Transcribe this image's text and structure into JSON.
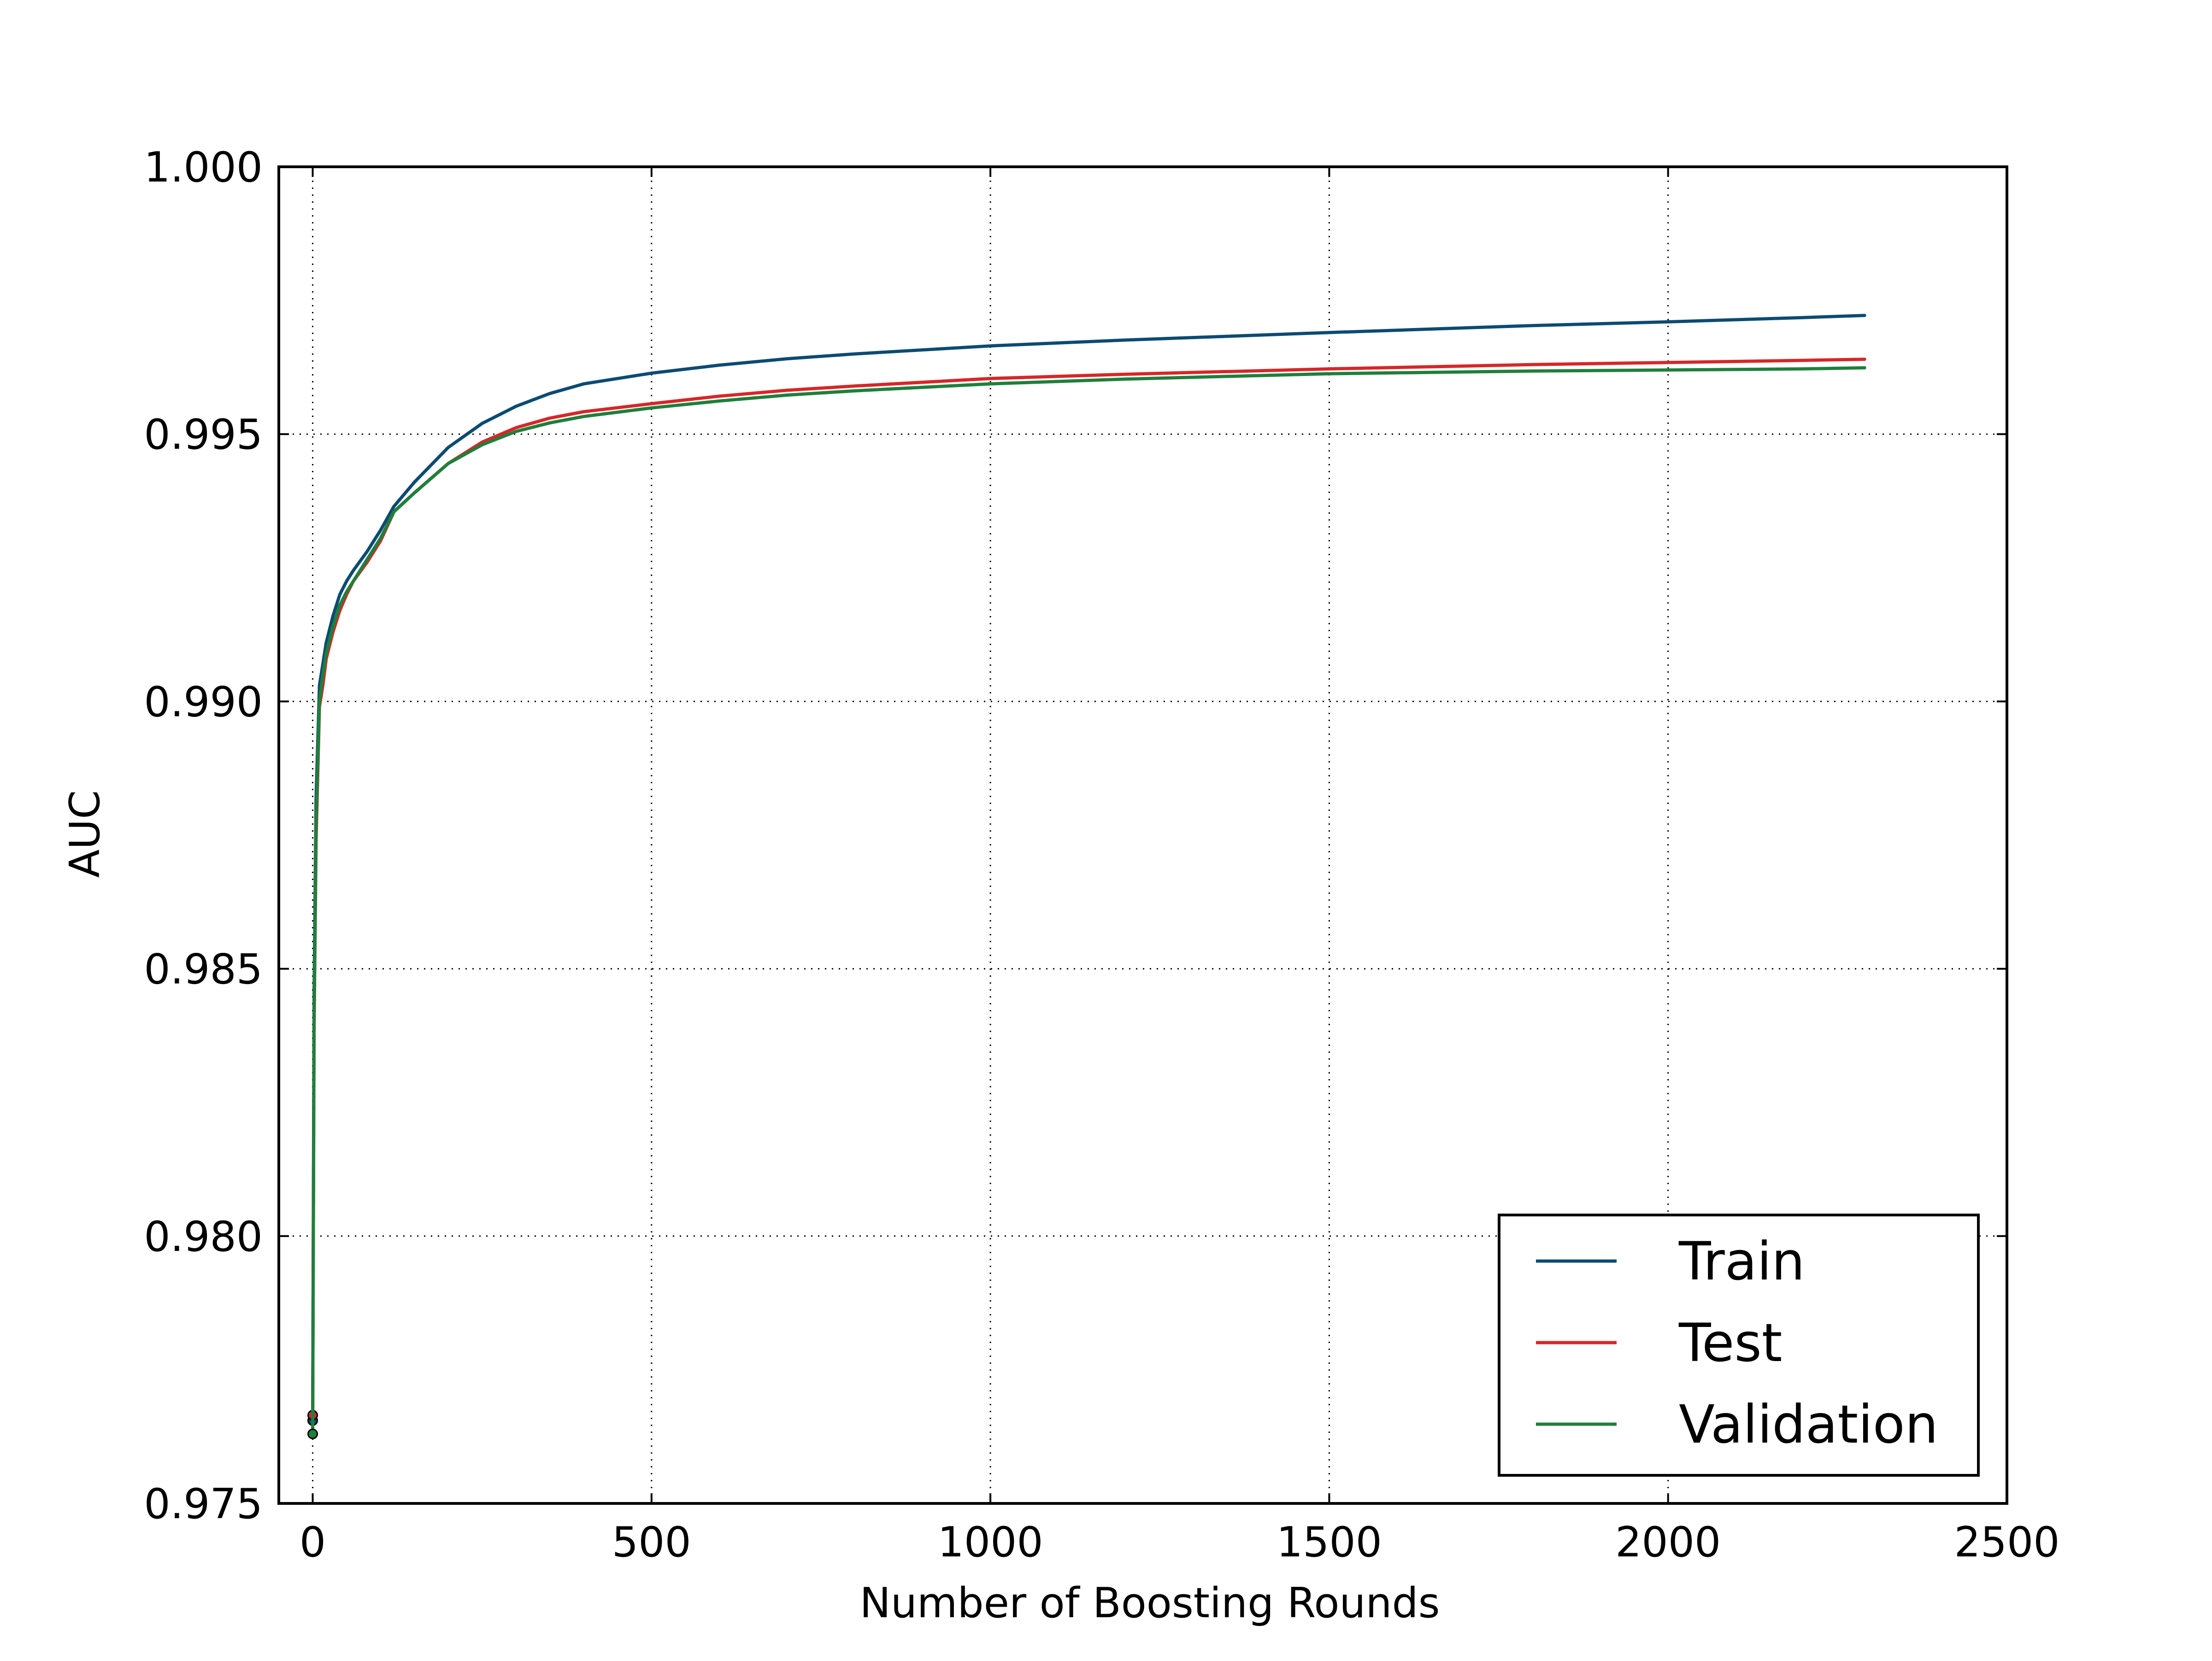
{
  "chart_data": {
    "type": "line",
    "title": "",
    "xlabel": "Number of Boosting Rounds",
    "ylabel": "AUC",
    "xlim": [
      -50,
      2500
    ],
    "ylim": [
      0.975,
      1.0
    ],
    "xticks": [
      0,
      500,
      1000,
      1500,
      2000,
      2500
    ],
    "xtick_labels": [
      "0",
      "500",
      "1000",
      "1500",
      "2000",
      "2500"
    ],
    "yticks": [
      0.975,
      0.98,
      0.985,
      0.99,
      0.995,
      1.0
    ],
    "ytick_labels": [
      "0.975",
      "0.980",
      "0.985",
      "0.990",
      "0.995",
      "1.000"
    ],
    "grid": true,
    "grid_style": "dotted",
    "legend_position": "lower-right",
    "series": [
      {
        "name": "Train",
        "color": "#0b4b73",
        "start_marker": true,
        "x": [
          0,
          2,
          5,
          10,
          15,
          20,
          30,
          40,
          50,
          60,
          80,
          100,
          120,
          150,
          200,
          250,
          300,
          350,
          400,
          500,
          600,
          700,
          800,
          1000,
          1200,
          1500,
          1800,
          2000,
          2200,
          2290
        ],
        "y": [
          0.97655,
          0.9845,
          0.9882,
          0.9903,
          0.9907,
          0.9911,
          0.9916,
          0.992,
          0.99225,
          0.99245,
          0.9928,
          0.9932,
          0.99365,
          0.9941,
          0.99475,
          0.9952,
          0.99552,
          0.99576,
          0.99594,
          0.99614,
          0.99629,
          0.99641,
          0.9965,
          0.99665,
          0.99676,
          0.9969,
          0.99703,
          0.9971,
          0.99718,
          0.99722
        ]
      },
      {
        "name": "Test",
        "color": "#d62728",
        "start_marker": true,
        "x": [
          0,
          2,
          5,
          10,
          15,
          20,
          30,
          40,
          50,
          60,
          80,
          100,
          120,
          150,
          200,
          250,
          300,
          350,
          400,
          500,
          600,
          700,
          800,
          1000,
          1200,
          1500,
          1800,
          2000,
          2200,
          2290
        ],
        "y": [
          0.97665,
          0.9838,
          0.9874,
          0.9899,
          0.9903,
          0.9908,
          0.9913,
          0.9917,
          0.992,
          0.99225,
          0.9926,
          0.993,
          0.99355,
          0.9939,
          0.99445,
          0.99485,
          0.99512,
          0.9953,
          0.99542,
          0.99557,
          0.99571,
          0.99582,
          0.9959,
          0.99604,
          0.99612,
          0.99622,
          0.9963,
          0.99634,
          0.99638,
          0.9964
        ]
      },
      {
        "name": "Validation",
        "color": "#1f7f3b",
        "start_marker": true,
        "x": [
          0,
          2,
          5,
          10,
          15,
          20,
          30,
          40,
          50,
          60,
          80,
          100,
          120,
          150,
          200,
          250,
          300,
          350,
          400,
          500,
          600,
          700,
          800,
          1000,
          1200,
          1500,
          1800,
          2000,
          2200,
          2290
        ],
        "y": [
          0.9763,
          0.984,
          0.9877,
          0.99,
          0.9905,
          0.9909,
          0.9914,
          0.9918,
          0.99205,
          0.99225,
          0.99265,
          0.99305,
          0.99355,
          0.9939,
          0.99445,
          0.9948,
          0.99505,
          0.99521,
          0.99533,
          0.99549,
          0.99562,
          0.99573,
          0.99581,
          0.99594,
          0.99603,
          0.99613,
          0.99618,
          0.9962,
          0.99622,
          0.99624
        ]
      }
    ]
  }
}
